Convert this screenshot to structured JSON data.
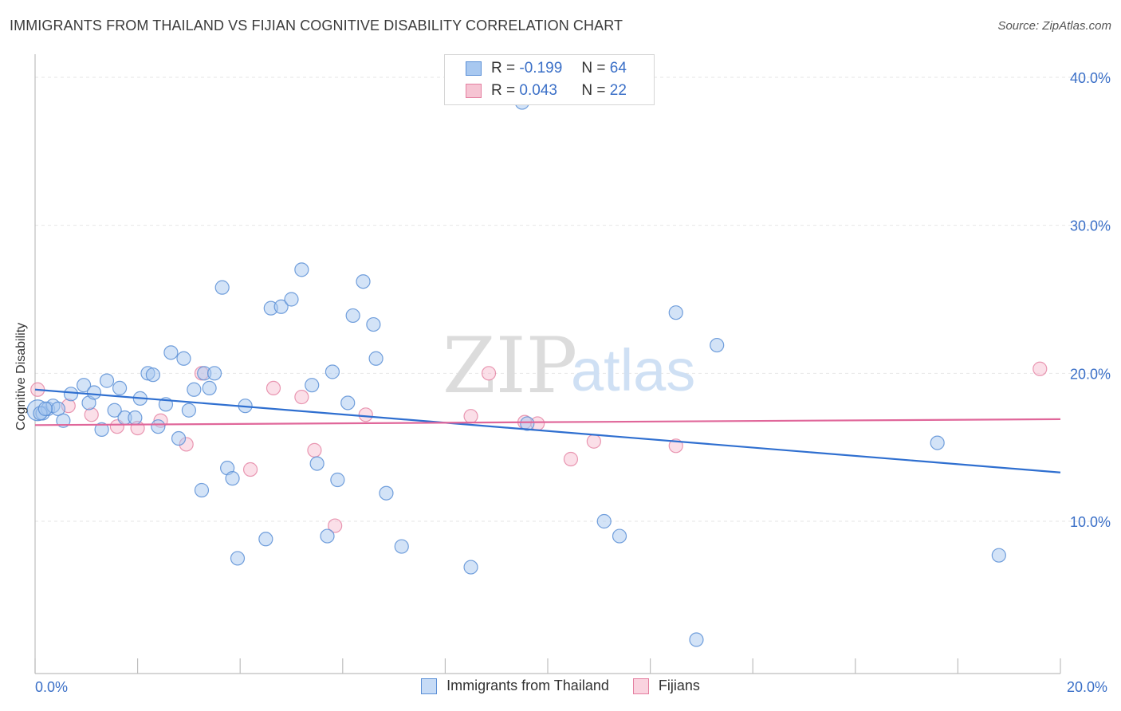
{
  "title": "IMMIGRANTS FROM THAILAND VS FIJIAN COGNITIVE DISABILITY CORRELATION CHART",
  "source": "Source: ZipAtlas.com",
  "watermark": {
    "zip": "ZIP",
    "atlas": "atlas"
  },
  "legend_top": {
    "rows": [
      {
        "r_label": "R =",
        "r_value": "-0.199",
        "n_label": "N =",
        "n_value": "64"
      },
      {
        "r_label": "R =",
        "r_value": "0.043",
        "n_label": "N =",
        "n_value": "22"
      }
    ]
  },
  "legend_bottom": [
    {
      "label": "Immigrants from Thailand"
    },
    {
      "label": "Fijians"
    }
  ],
  "axis": {
    "x_min_label": "0.0%",
    "x_max_label": "20.0%"
  },
  "colors": {
    "blue_fill": "#a8c8f0",
    "blue_stroke": "#5b8fd6",
    "blue_line": "#2f6fd0",
    "pink_fill": "#f6b8cb",
    "pink_stroke": "#e47fa0",
    "pink_line": "#e0679a",
    "tick_text": "#3a6fc7",
    "grid": "#e6e6e6"
  },
  "chart_data": {
    "type": "scatter",
    "title": "IMMIGRANTS FROM THAILAND VS FIJIAN COGNITIVE DISABILITY CORRELATION CHART",
    "xlabel": "",
    "ylabel": "Cognitive Disability",
    "xlim": [
      0,
      20
    ],
    "ylim": [
      0,
      40.5
    ],
    "y_ticks": [
      10,
      20,
      30,
      40
    ],
    "y_tick_labels": [
      "10.0%",
      "20.0%",
      "30.0%",
      "40.0%"
    ],
    "x_ticks": [
      0,
      2,
      4,
      6,
      8,
      10,
      12,
      14,
      16,
      18,
      20
    ],
    "grid": true,
    "series": [
      {
        "name": "Immigrants from Thailand",
        "color": "#5b8fd6",
        "r": -0.199,
        "n": 64,
        "trend": {
          "x": [
            0,
            20
          ],
          "y": [
            18.9,
            13.3
          ]
        },
        "points": [
          [
            0.05,
            17.5
          ],
          [
            0.15,
            17.3
          ],
          [
            0.25,
            17.6
          ],
          [
            0.35,
            17.8
          ],
          [
            0.45,
            17.6
          ],
          [
            0.55,
            16.8
          ],
          [
            0.7,
            18.6
          ],
          [
            0.95,
            19.2
          ],
          [
            1.05,
            18.0
          ],
          [
            1.15,
            18.7
          ],
          [
            1.3,
            16.2
          ],
          [
            1.4,
            19.5
          ],
          [
            1.55,
            17.5
          ],
          [
            1.65,
            19.0
          ],
          [
            1.75,
            17.0
          ],
          [
            1.95,
            17.0
          ],
          [
            2.05,
            18.3
          ],
          [
            2.2,
            20.0
          ],
          [
            2.3,
            19.9
          ],
          [
            2.4,
            16.4
          ],
          [
            2.55,
            17.9
          ],
          [
            2.65,
            21.4
          ],
          [
            2.8,
            15.6
          ],
          [
            2.9,
            21.0
          ],
          [
            3.0,
            17.5
          ],
          [
            3.1,
            18.9
          ],
          [
            3.3,
            20.0
          ],
          [
            3.4,
            19.0
          ],
          [
            3.5,
            20.0
          ],
          [
            3.25,
            12.1
          ],
          [
            3.65,
            25.8
          ],
          [
            3.75,
            13.6
          ],
          [
            3.85,
            12.9
          ],
          [
            3.95,
            7.5
          ],
          [
            4.1,
            17.8
          ],
          [
            4.5,
            8.8
          ],
          [
            4.6,
            24.4
          ],
          [
            4.8,
            24.5
          ],
          [
            5.0,
            25.0
          ],
          [
            5.2,
            27.0
          ],
          [
            5.4,
            19.2
          ],
          [
            5.5,
            13.9
          ],
          [
            5.7,
            9.0
          ],
          [
            5.8,
            20.1
          ],
          [
            5.9,
            12.8
          ],
          [
            6.1,
            18.0
          ],
          [
            6.2,
            23.9
          ],
          [
            6.4,
            26.2
          ],
          [
            6.6,
            23.3
          ],
          [
            6.65,
            21.0
          ],
          [
            6.85,
            11.9
          ],
          [
            7.15,
            8.3
          ],
          [
            8.5,
            6.9
          ],
          [
            9.5,
            38.3
          ],
          [
            9.6,
            16.6
          ],
          [
            11.1,
            10.0
          ],
          [
            11.4,
            9.0
          ],
          [
            12.5,
            24.1
          ],
          [
            12.9,
            2.0
          ],
          [
            13.3,
            21.9
          ],
          [
            17.6,
            15.3
          ],
          [
            18.8,
            7.7
          ],
          [
            0.1,
            17.3
          ],
          [
            0.2,
            17.6
          ]
        ]
      },
      {
        "name": "Fijians",
        "color": "#e47fa0",
        "r": 0.043,
        "n": 22,
        "trend": {
          "x": [
            0,
            20
          ],
          "y": [
            16.5,
            16.9
          ]
        },
        "points": [
          [
            0.05,
            18.9
          ],
          [
            0.65,
            17.8
          ],
          [
            1.1,
            17.2
          ],
          [
            1.6,
            16.4
          ],
          [
            2.0,
            16.3
          ],
          [
            2.45,
            16.8
          ],
          [
            2.95,
            15.2
          ],
          [
            3.25,
            20.0
          ],
          [
            4.2,
            13.5
          ],
          [
            4.65,
            19.0
          ],
          [
            5.2,
            18.4
          ],
          [
            5.45,
            14.8
          ],
          [
            5.85,
            9.7
          ],
          [
            6.45,
            17.2
          ],
          [
            8.5,
            17.1
          ],
          [
            8.85,
            20.0
          ],
          [
            9.55,
            16.7
          ],
          [
            9.8,
            16.6
          ],
          [
            10.45,
            14.2
          ],
          [
            10.9,
            15.4
          ],
          [
            12.5,
            15.1
          ],
          [
            19.6,
            20.3
          ]
        ]
      }
    ]
  }
}
